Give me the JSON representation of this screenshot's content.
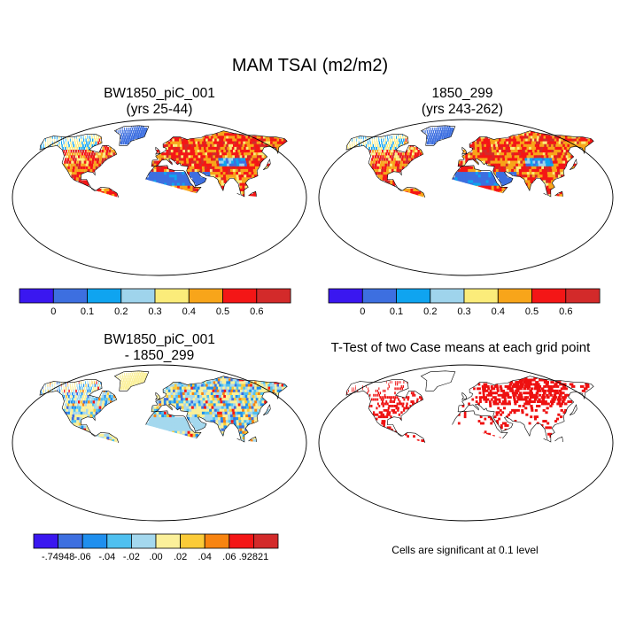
{
  "title": "MAM TSAI (m2/m2)",
  "panels": [
    {
      "id": "p1",
      "title_line1": "BW1850_piC_001",
      "title_line2": "(yrs 25-44)"
    },
    {
      "id": "p2",
      "title_line1": "1850_299",
      "title_line2": "(yrs 243-262)"
    },
    {
      "id": "p3",
      "title_line1": "BW1850_piC_001",
      "title_line2": "- 1850_299"
    },
    {
      "id": "p4",
      "title_line1": "T-Test of two Case means at each grid point"
    }
  ],
  "significance_note": "Cells are significant at 0.1 level",
  "colorbars": {
    "abs": {
      "colors": [
        "#3a17f0",
        "#3d6fe0",
        "#0fa4f0",
        "#9fd4ec",
        "#fbec7a",
        "#f8a51a",
        "#f41616",
        "#d32a2a"
      ],
      "labels": [
        "0",
        "0.1",
        "0.2",
        "0.3",
        "0.4",
        "0.5",
        "0.6"
      ]
    },
    "diff": {
      "colors": [
        "#3a17f0",
        "#3d6fe0",
        "#1f8fee",
        "#4fc0f0",
        "#a4d8ee",
        "#fbf09a",
        "#fbcb38",
        "#f88410",
        "#f41616",
        "#d32a2a"
      ],
      "labels": [
        "-.74948",
        "-.06",
        "-.04",
        "-.02",
        ".00",
        ".02",
        ".04",
        ".06",
        ".92821"
      ]
    },
    "significance_color": "#ee1111"
  }
}
